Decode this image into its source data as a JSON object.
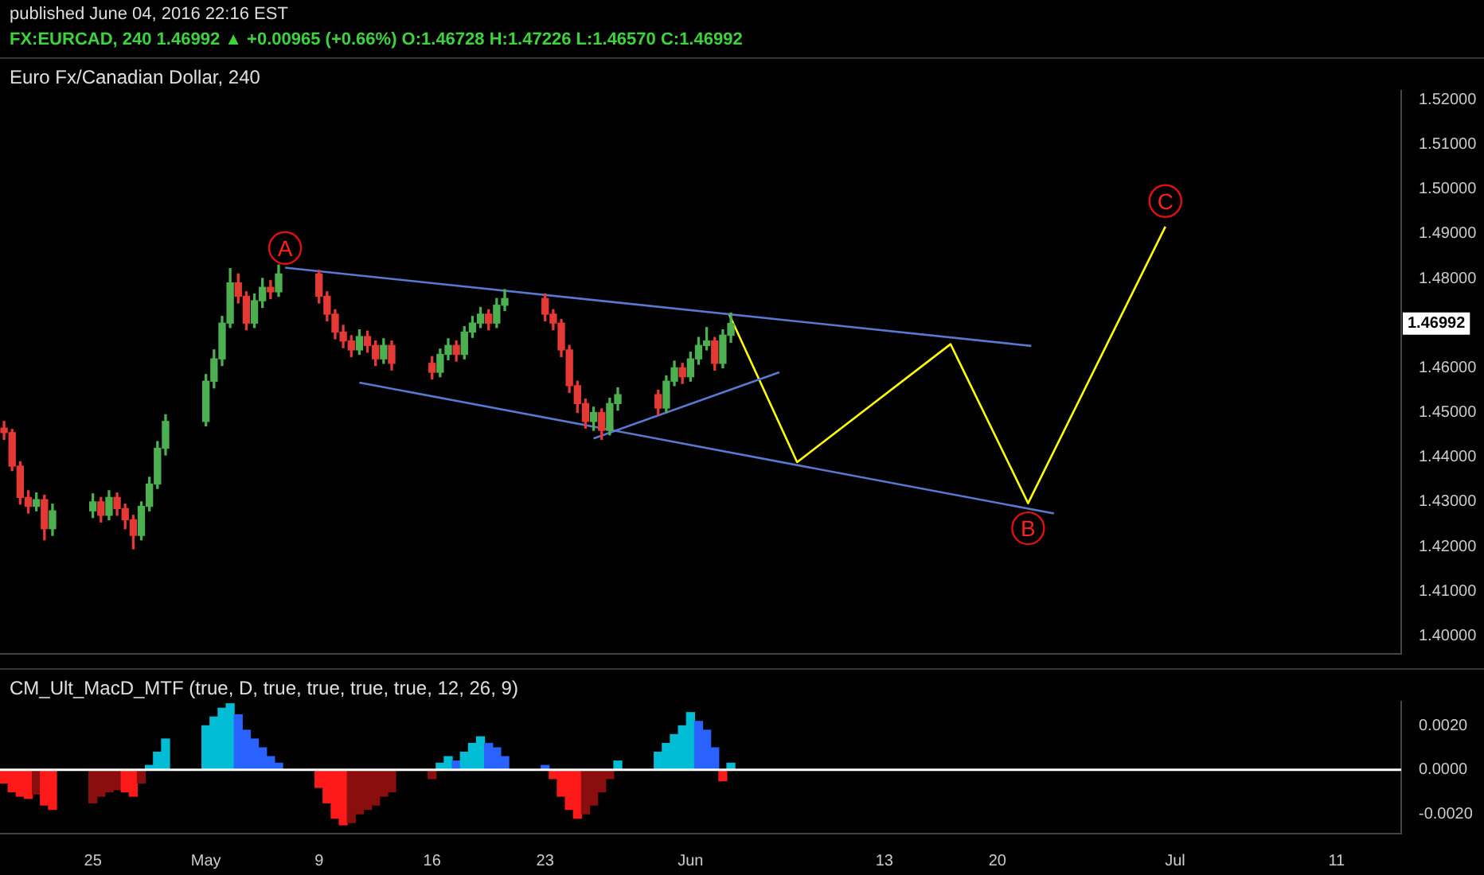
{
  "chart_data": [
    {
      "type": "candlestick",
      "title": "Euro Fx/Canadian Dollar, 240",
      "subtitle": "FX:EURCAD, 240 1.46992 ▲ +0.00965 (+0.66%) O:1.46728 H:1.47226 L:1.46570 C:1.46992",
      "annotations": [
        "published June 04, 2016 22:16 EST",
        {
          "text": "A",
          "x": "2016-05-06T21:36",
          "y": 1.4868
        },
        {
          "text": "B",
          "x": "2016-06-21T21:36",
          "y": 1.4241
        },
        {
          "text": "C",
          "x": "2016-06-30T09:36",
          "y": 1.4973
        },
        {
          "text": "1.46992",
          "y": 1.46992
        }
      ],
      "x": [
        "2016-04-19T12:00",
        "2016-04-20",
        "2016-04-20T12:00",
        "2016-04-21",
        "2016-04-21T12:00",
        "2016-04-22",
        "2016-04-22T12:00",
        "2016-04-25",
        "2016-04-25T12:00",
        "2016-04-26",
        "2016-04-26T12:00",
        "2016-04-27",
        "2016-04-27T12:00",
        "2016-04-28",
        "2016-04-28T12:00",
        "2016-04-29",
        "2016-04-29T12:00",
        "2016-05-02",
        "2016-05-02T12:00",
        "2016-05-03",
        "2016-05-03T12:00",
        "2016-05-04",
        "2016-05-04T12:00",
        "2016-05-05",
        "2016-05-05T12:00",
        "2016-05-06",
        "2016-05-06T12:00",
        "2016-05-09",
        "2016-05-09T12:00",
        "2016-05-10",
        "2016-05-10T12:00",
        "2016-05-11",
        "2016-05-11T12:00",
        "2016-05-12",
        "2016-05-12T12:00",
        "2016-05-13",
        "2016-05-13T12:00",
        "2016-05-16",
        "2016-05-16T12:00",
        "2016-05-17",
        "2016-05-17T12:00",
        "2016-05-18",
        "2016-05-18T12:00",
        "2016-05-19",
        "2016-05-19T12:00",
        "2016-05-20",
        "2016-05-20T12:00",
        "2016-05-23",
        "2016-05-23T12:00",
        "2016-05-24",
        "2016-05-24T12:00",
        "2016-05-25",
        "2016-05-25T12:00",
        "2016-05-26",
        "2016-05-26T12:00",
        "2016-05-27",
        "2016-05-27T12:00",
        "2016-05-30",
        "2016-05-30T12:00",
        "2016-05-31",
        "2016-05-31T12:00",
        "2016-06-01",
        "2016-06-01T12:00",
        "2016-06-02",
        "2016-06-02T12:00",
        "2016-06-03",
        "2016-06-03T12:00"
      ],
      "ohlc": [
        [
          1.4465,
          1.448,
          1.444,
          1.4455
        ],
        [
          1.4455,
          1.4462,
          1.437,
          1.438
        ],
        [
          1.438,
          1.439,
          1.4295,
          1.431
        ],
        [
          1.431,
          1.4325,
          1.4275,
          1.429
        ],
        [
          1.429,
          1.432,
          1.428,
          1.4305
        ],
        [
          1.4305,
          1.4315,
          1.4215,
          1.424
        ],
        [
          1.424,
          1.4295,
          1.4225,
          1.428
        ],
        [
          1.428,
          1.4318,
          1.4265,
          1.43
        ],
        [
          1.43,
          1.431,
          1.4255,
          1.427
        ],
        [
          1.427,
          1.4325,
          1.426,
          1.431
        ],
        [
          1.431,
          1.432,
          1.427,
          1.4285
        ],
        [
          1.4285,
          1.4295,
          1.424,
          1.426
        ],
        [
          1.426,
          1.427,
          1.4195,
          1.4225
        ],
        [
          1.4225,
          1.43,
          1.4215,
          1.429
        ],
        [
          1.429,
          1.4355,
          1.428,
          1.434
        ],
        [
          1.434,
          1.4435,
          1.433,
          1.442
        ],
        [
          1.442,
          1.4495,
          1.4405,
          1.448
        ],
        [
          1.448,
          1.4585,
          1.447,
          1.457
        ],
        [
          1.457,
          1.464,
          1.4555,
          1.462
        ],
        [
          1.462,
          1.4715,
          1.4605,
          1.47
        ],
        [
          1.47,
          1.4822,
          1.469,
          1.479
        ],
        [
          1.479,
          1.481,
          1.4745,
          1.476
        ],
        [
          1.476,
          1.477,
          1.4685,
          1.47
        ],
        [
          1.47,
          1.4765,
          1.469,
          1.475
        ],
        [
          1.475,
          1.48,
          1.4735,
          1.478
        ],
        [
          1.478,
          1.4795,
          1.4755,
          1.477
        ],
        [
          1.477,
          1.483,
          1.476,
          1.481
        ],
        [
          1.481,
          1.4818,
          1.4745,
          1.476
        ],
        [
          1.476,
          1.477,
          1.4705,
          1.472
        ],
        [
          1.472,
          1.473,
          1.4665,
          1.468
        ],
        [
          1.468,
          1.4695,
          1.4645,
          1.466
        ],
        [
          1.466,
          1.4672,
          1.4625,
          1.464
        ],
        [
          1.464,
          1.4685,
          1.463,
          1.467
        ],
        [
          1.467,
          1.4682,
          1.4635,
          1.465
        ],
        [
          1.465,
          1.466,
          1.4605,
          1.462
        ],
        [
          1.462,
          1.4665,
          1.461,
          1.465
        ],
        [
          1.465,
          1.466,
          1.4595,
          1.461
        ],
        [
          1.461,
          1.4625,
          1.4575,
          1.459
        ],
        [
          1.459,
          1.4642,
          1.458,
          1.463
        ],
        [
          1.463,
          1.4665,
          1.4618,
          1.465
        ],
        [
          1.465,
          1.466,
          1.4615,
          1.463
        ],
        [
          1.463,
          1.4692,
          1.462,
          1.468
        ],
        [
          1.468,
          1.4715,
          1.4668,
          1.47
        ],
        [
          1.47,
          1.4735,
          1.469,
          1.472
        ],
        [
          1.472,
          1.473,
          1.4685,
          1.47
        ],
        [
          1.47,
          1.4755,
          1.469,
          1.474
        ],
        [
          1.474,
          1.4775,
          1.4728,
          1.4755
        ],
        [
          1.4755,
          1.4765,
          1.4705,
          1.472
        ],
        [
          1.472,
          1.473,
          1.4685,
          1.47
        ],
        [
          1.47,
          1.4708,
          1.4625,
          1.464
        ],
        [
          1.464,
          1.465,
          1.4545,
          1.456
        ],
        [
          1.456,
          1.457,
          1.45,
          1.452
        ],
        [
          1.452,
          1.453,
          1.4465,
          1.448
        ],
        [
          1.448,
          1.4512,
          1.446,
          1.45
        ],
        [
          1.45,
          1.4508,
          1.444,
          1.446
        ],
        [
          1.446,
          1.4532,
          1.445,
          1.452
        ],
        [
          1.452,
          1.4555,
          1.4505,
          1.454
        ],
        [
          1.454,
          1.455,
          1.4495,
          1.451
        ],
        [
          1.451,
          1.4582,
          1.45,
          1.457
        ],
        [
          1.457,
          1.4615,
          1.456,
          1.46
        ],
        [
          1.46,
          1.461,
          1.4565,
          1.458
        ],
        [
          1.458,
          1.4635,
          1.457,
          1.462
        ],
        [
          1.462,
          1.4668,
          1.4608,
          1.465
        ],
        [
          1.465,
          1.469,
          1.464,
          1.466
        ],
        [
          1.466,
          1.4668,
          1.4595,
          1.461
        ],
        [
          1.461,
          1.4685,
          1.46,
          1.4673
        ],
        [
          1.46728,
          1.47226,
          1.4657,
          1.46992
        ]
      ],
      "colors": [
        "#e53935",
        "#e53935",
        "#e53935",
        "#e53935",
        "#4caf50",
        "#e53935",
        "#4caf50",
        "#4caf50",
        "#e53935",
        "#4caf50",
        "#e53935",
        "#e53935",
        "#e53935",
        "#4caf50",
        "#4caf50",
        "#4caf50",
        "#4caf50",
        "#4caf50",
        "#4caf50",
        "#4caf50",
        "#4caf50",
        "#e53935",
        "#e53935",
        "#4caf50",
        "#4caf50",
        "#e53935",
        "#4caf50",
        "#e53935",
        "#e53935",
        "#e53935",
        "#e53935",
        "#e53935",
        "#4caf50",
        "#e53935",
        "#e53935",
        "#4caf50",
        "#e53935",
        "#e53935",
        "#4caf50",
        "#4caf50",
        "#e53935",
        "#4caf50",
        "#4caf50",
        "#4caf50",
        "#e53935",
        "#4caf50",
        "#4caf50",
        "#e53935",
        "#e53935",
        "#e53935",
        "#e53935",
        "#e53935",
        "#e53935",
        "#4caf50",
        "#e53935",
        "#4caf50",
        "#4caf50",
        "#e53935",
        "#4caf50",
        "#4caf50",
        "#e53935",
        "#4caf50",
        "#4caf50",
        "#4caf50",
        "#e53935",
        "#4caf50",
        "#4caf50"
      ],
      "series": [
        {
          "type": "line",
          "color": "#5a78d0",
          "x": [
            "2016-05-06T21:36",
            "2016-06-22T02:24"
          ],
          "values": [
            1.4824,
            1.4649
          ]
        },
        {
          "type": "line",
          "color": "#5a78d0",
          "x": [
            "2016-05-11T12:00",
            "2016-06-23T12:00"
          ],
          "values": [
            1.4567,
            1.4274
          ]
        },
        {
          "type": "line",
          "color": "#5a78d0",
          "x": [
            "2016-05-26",
            "2016-06-06T12:00"
          ],
          "values": [
            1.4442,
            1.459
          ]
        },
        {
          "type": "line",
          "color": "#ffff00",
          "x": [
            "2016-06-03T09:36",
            "2016-06-07T14:24",
            "2016-06-17T02:24",
            "2016-06-21T21:36",
            "2016-06-30T09:36"
          ],
          "values": [
            1.4719,
            1.4389,
            1.4653,
            1.4297,
            1.4916
          ]
        }
      ],
      "xlim": [
        "2016-04-19T06:00",
        "2016-07-15"
      ],
      "ylim": [
        1.396,
        1.522
      ],
      "yticks": [
        {
          "value": 1.4,
          "label": "1.40000"
        },
        {
          "value": 1.41,
          "label": "1.41000"
        },
        {
          "value": 1.42,
          "label": "1.42000"
        },
        {
          "value": 1.43,
          "label": "1.43000"
        },
        {
          "value": 1.44,
          "label": "1.44000"
        },
        {
          "value": 1.45,
          "label": "1.45000"
        },
        {
          "value": 1.46,
          "label": "1.46000"
        },
        {
          "value": 1.48,
          "label": "1.48000"
        },
        {
          "value": 1.49,
          "label": "1.49000"
        },
        {
          "value": 1.5,
          "label": "1.50000"
        },
        {
          "value": 1.51,
          "label": "1.51000"
        },
        {
          "value": 1.52,
          "label": "1.52000"
        }
      ],
      "tick_labels": "y"
    },
    {
      "type": "bar",
      "title": "CM_Ult_MacD_MTF (true, D, true, true, true, true, 12, 26, 9)",
      "x": [
        "2016-04-19T12:00",
        "2016-04-20",
        "2016-04-20T12:00",
        "2016-04-21",
        "2016-04-21T12:00",
        "2016-04-22",
        "2016-04-22T12:00",
        "2016-04-25",
        "2016-04-25T12:00",
        "2016-04-26",
        "2016-04-26T12:00",
        "2016-04-27",
        "2016-04-27T12:00",
        "2016-04-28",
        "2016-04-28T12:00",
        "2016-04-29",
        "2016-04-29T12:00",
        "2016-05-02",
        "2016-05-02T12:00",
        "2016-05-03",
        "2016-05-03T12:00",
        "2016-05-04",
        "2016-05-04T12:00",
        "2016-05-05",
        "2016-05-05T12:00",
        "2016-05-06",
        "2016-05-06T12:00",
        "2016-05-09",
        "2016-05-09T12:00",
        "2016-05-10",
        "2016-05-10T12:00",
        "2016-05-11",
        "2016-05-11T12:00",
        "2016-05-12",
        "2016-05-12T12:00",
        "2016-05-13",
        "2016-05-13T12:00",
        "2016-05-16",
        "2016-05-16T12:00",
        "2016-05-17",
        "2016-05-17T12:00",
        "2016-05-18",
        "2016-05-18T12:00",
        "2016-05-19",
        "2016-05-19T12:00",
        "2016-05-20",
        "2016-05-20T12:00",
        "2016-05-23",
        "2016-05-23T12:00",
        "2016-05-24",
        "2016-05-24T12:00",
        "2016-05-25",
        "2016-05-25T12:00",
        "2016-05-26",
        "2016-05-26T12:00",
        "2016-05-27",
        "2016-05-27T12:00",
        "2016-05-30",
        "2016-05-30T12:00",
        "2016-05-31",
        "2016-05-31T12:00",
        "2016-06-01",
        "2016-06-01T12:00",
        "2016-06-02",
        "2016-06-02T12:00",
        "2016-06-03",
        "2016-06-03T12:00"
      ],
      "values": [
        -0.0006,
        -0.001,
        -0.0012,
        -0.0013,
        -0.0011,
        -0.0016,
        -0.0018,
        -0.0015,
        -0.0012,
        -0.001,
        -0.0009,
        -0.001,
        -0.0012,
        -0.0006,
        0.0002,
        0.0008,
        0.0014,
        0.002,
        0.0024,
        0.0028,
        0.003,
        0.0025,
        0.0018,
        0.0014,
        0.001,
        0.0006,
        0.0003,
        -0.0008,
        -0.0015,
        -0.0022,
        -0.0025,
        -0.0024,
        -0.002,
        -0.0018,
        -0.0016,
        -0.0012,
        -0.001,
        -0.0004,
        0.0003,
        0.0006,
        0.0004,
        0.0008,
        0.0012,
        0.0015,
        0.0012,
        0.001,
        0.0006,
        0.0002,
        -0.0004,
        -0.0012,
        -0.0018,
        -0.0022,
        -0.002,
        -0.0016,
        -0.001,
        -0.0004,
        0.0004,
        0.0008,
        0.0012,
        0.0016,
        0.002,
        0.0026,
        0.0022,
        0.0018,
        0.001,
        -0.0005,
        0.0003
      ],
      "colors": [
        "#ff1a1a",
        "#ff1a1a",
        "#ff1a1a",
        "#ff1a1a",
        "#8b0e0e",
        "#ff1a1a",
        "#ff1a1a",
        "#8b0e0e",
        "#8b0e0e",
        "#8b0e0e",
        "#8b0e0e",
        "#ff1a1a",
        "#ff1a1a",
        "#8b0e0e",
        "#00bcd4",
        "#00bcd4",
        "#00bcd4",
        "#00bcd4",
        "#00bcd4",
        "#00bcd4",
        "#00bcd4",
        "#2962ff",
        "#2962ff",
        "#2962ff",
        "#2962ff",
        "#2962ff",
        "#2962ff",
        "#ff1a1a",
        "#ff1a1a",
        "#ff1a1a",
        "#ff1a1a",
        "#8b0e0e",
        "#8b0e0e",
        "#8b0e0e",
        "#8b0e0e",
        "#8b0e0e",
        "#8b0e0e",
        "#8b0e0e",
        "#00bcd4",
        "#00bcd4",
        "#2962ff",
        "#00bcd4",
        "#00bcd4",
        "#00bcd4",
        "#2962ff",
        "#2962ff",
        "#2962ff",
        "#2962ff",
        "#ff1a1a",
        "#ff1a1a",
        "#ff1a1a",
        "#ff1a1a",
        "#8b0e0e",
        "#8b0e0e",
        "#8b0e0e",
        "#8b0e0e",
        "#00bcd4",
        "#00bcd4",
        "#00bcd4",
        "#00bcd4",
        "#00bcd4",
        "#00bcd4",
        "#2962ff",
        "#2962ff",
        "#2962ff",
        "#ff1a1a",
        "#00bcd4"
      ],
      "ref_lines": [
        {
          "axis": "y",
          "value": 0,
          "color": "#ffffff"
        }
      ],
      "xlim": [
        "2016-04-19T06:00",
        "2016-07-15"
      ],
      "xticks": [
        {
          "value": "2016-04-25",
          "label": "25"
        },
        {
          "value": "2016-05-02",
          "label": "May"
        },
        {
          "value": "2016-05-09",
          "label": "9"
        },
        {
          "value": "2016-05-16",
          "label": "16"
        },
        {
          "value": "2016-05-23",
          "label": "23"
        },
        {
          "value": "2016-06-01",
          "label": "Jun"
        },
        {
          "value": "2016-06-13",
          "label": "13"
        },
        {
          "value": "2016-06-20",
          "label": "20"
        },
        {
          "value": "2016-07-01",
          "label": "Jul"
        },
        {
          "value": "2016-07-11",
          "label": "11"
        }
      ],
      "ylim": [
        -0.0029,
        0.0031
      ],
      "yticks": [
        {
          "value": -0.002,
          "label": "-0.0020"
        },
        {
          "value": 0,
          "label": "0.0000"
        },
        {
          "value": 0.002,
          "label": "0.0020"
        }
      ]
    }
  ]
}
